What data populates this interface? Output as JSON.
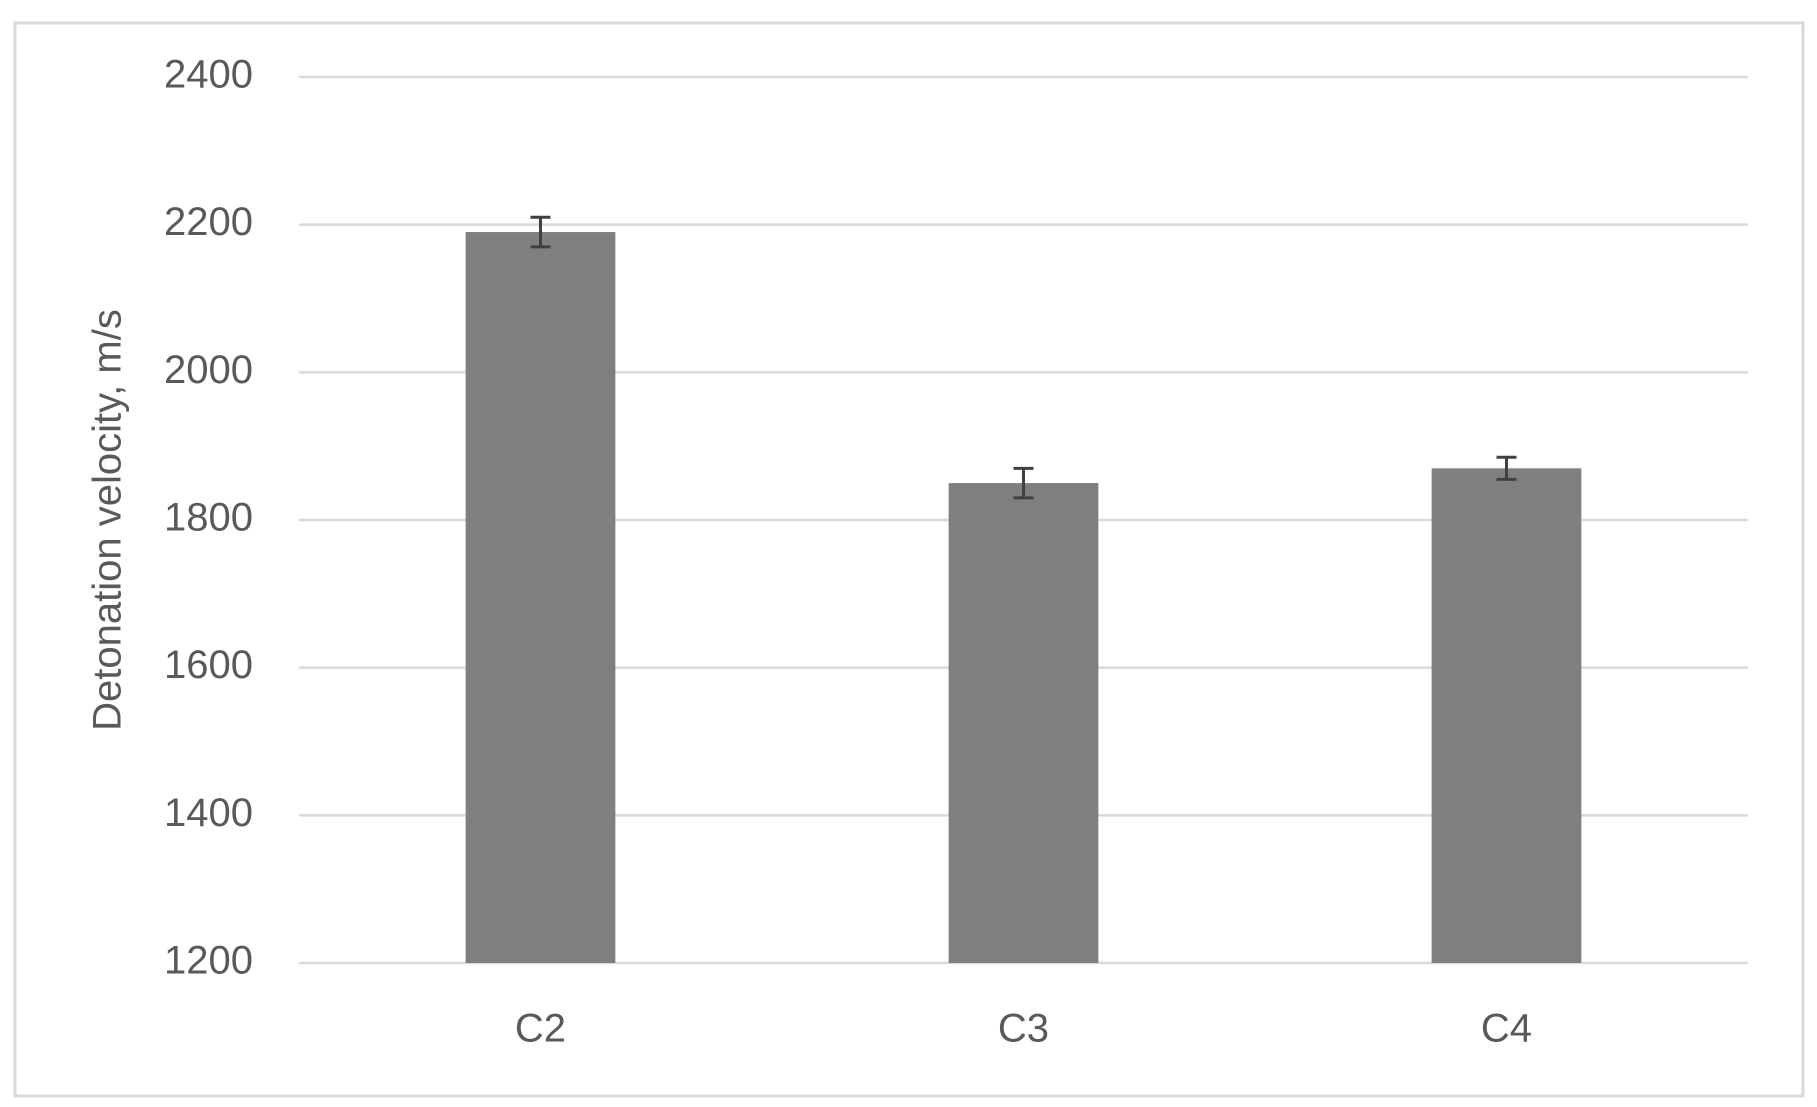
{
  "chart_data": {
    "type": "bar",
    "y_label": "Detonation velocity, m/s",
    "categories": [
      "C2",
      "C3",
      "C4"
    ],
    "values": [
      2190,
      1850,
      1870
    ],
    "errors": [
      20,
      20,
      15
    ],
    "color": "#7f7f7f",
    "error_color": "#404040",
    "ylim": [
      1200,
      2400
    ],
    "yticks": [
      1200,
      1400,
      1600,
      1800,
      2000,
      2200,
      2400
    ],
    "grid": true
  }
}
